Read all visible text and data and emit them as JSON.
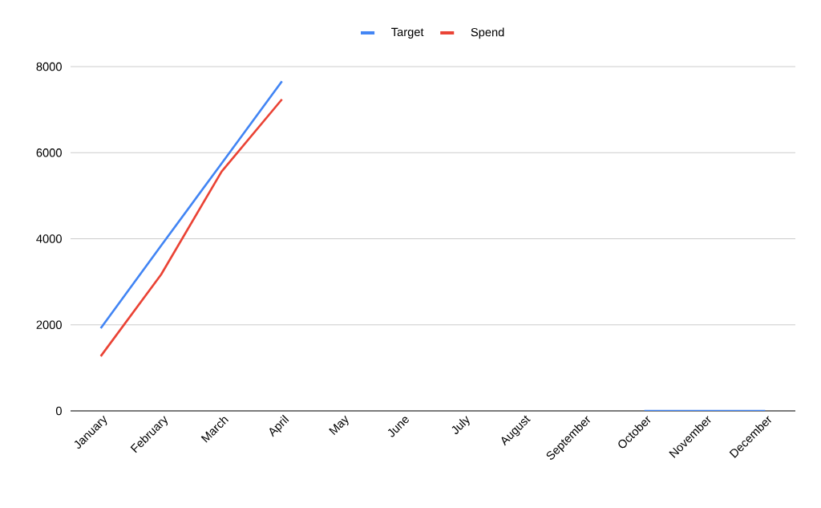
{
  "chart_data": {
    "type": "line",
    "categories": [
      "January",
      "February",
      "March",
      "April",
      "May",
      "June",
      "July",
      "August",
      "September",
      "October",
      "November",
      "December"
    ],
    "series": [
      {
        "name": "Target",
        "color": "#4285f4",
        "values": [
          1920,
          3840,
          5750,
          7660,
          null,
          null,
          null,
          null,
          null,
          0,
          0,
          0
        ]
      },
      {
        "name": "Spend",
        "color": "#ea4335",
        "values": [
          1270,
          3170,
          5560,
          7240,
          null,
          null,
          null,
          null,
          null,
          null,
          null,
          null
        ]
      }
    ],
    "ylim": [
      0,
      8000
    ],
    "yticks": [
      0,
      2000,
      4000,
      6000,
      8000
    ],
    "grid": "y",
    "legend": "top",
    "marker": "none",
    "line_style": "solid"
  }
}
